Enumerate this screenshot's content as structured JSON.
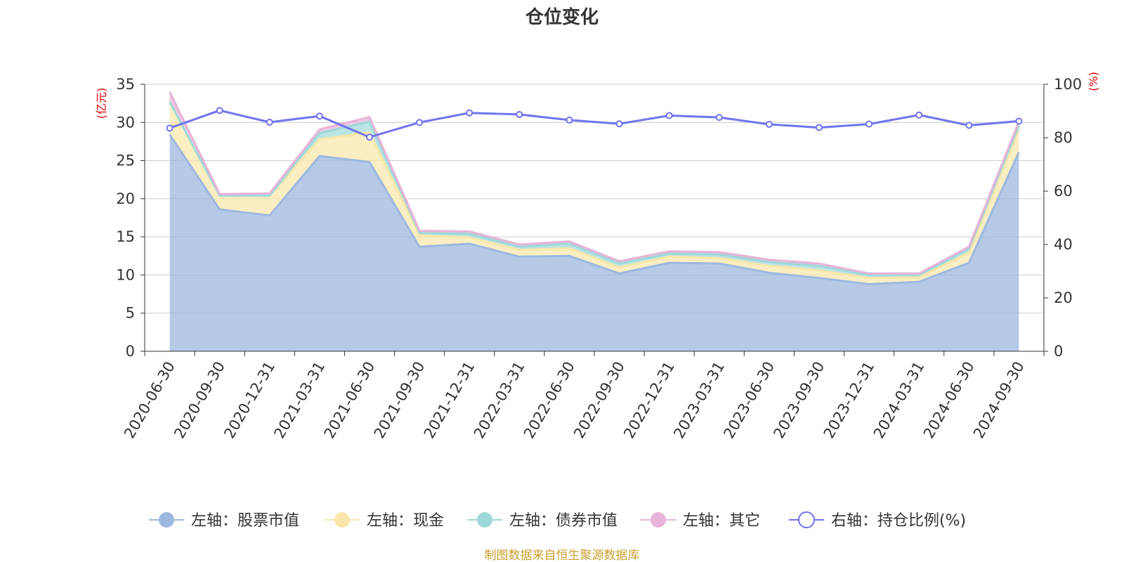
{
  "chart_data": {
    "type": "area",
    "title": "仓位变化",
    "y_left_unit": "(亿元)",
    "y_right_unit": "(%)",
    "y_left_range": [
      0,
      35
    ],
    "y_left_ticks": [
      0,
      5,
      10,
      15,
      20,
      25,
      30,
      35
    ],
    "y_right_range": [
      0,
      100
    ],
    "y_right_ticks": [
      0,
      20,
      40,
      60,
      80,
      100
    ],
    "categories": [
      "2020-06-30",
      "2020-09-30",
      "2020-12-31",
      "2021-03-31",
      "2021-06-30",
      "2021-09-30",
      "2021-12-31",
      "2022-03-31",
      "2022-06-30",
      "2022-09-30",
      "2022-12-31",
      "2023-03-31",
      "2023-06-30",
      "2023-09-30",
      "2023-12-31",
      "2024-03-31",
      "2024-06-30",
      "2024-09-30"
    ],
    "series": [
      {
        "name": "左轴：股票市值",
        "axis": "left",
        "stack": true,
        "color": "#9db8e0",
        "values": [
          28.4,
          18.6,
          17.8,
          25.6,
          24.8,
          13.7,
          14.1,
          12.4,
          12.5,
          10.2,
          11.6,
          11.5,
          10.3,
          9.6,
          8.8,
          9.1,
          11.6,
          26.1
        ]
      },
      {
        "name": "左轴：现金",
        "axis": "left",
        "stack": true,
        "color": "#f8e7a8",
        "values": [
          4.3,
          1.8,
          2.6,
          2.2,
          3.9,
          1.5,
          0.8,
          0.9,
          1.0,
          0.8,
          0.8,
          0.7,
          0.9,
          1.0,
          0.8,
          0.6,
          1.3,
          2.9
        ]
      },
      {
        "name": "左轴：债券市值",
        "axis": "left",
        "stack": true,
        "color": "#9ed8d8",
        "values": [
          0.0,
          0.0,
          0.0,
          0.8,
          1.4,
          0.3,
          0.5,
          0.4,
          0.6,
          0.5,
          0.4,
          0.5,
          0.5,
          0.6,
          0.4,
          0.3,
          0.5,
          0.6
        ]
      },
      {
        "name": "左轴：其它",
        "axis": "left",
        "stack": true,
        "color": "#e7b3d8",
        "values": [
          1.3,
          0.2,
          0.3,
          0.5,
          0.6,
          0.3,
          0.3,
          0.3,
          0.3,
          0.3,
          0.3,
          0.3,
          0.3,
          0.3,
          0.2,
          0.2,
          0.3,
          0.5
        ]
      },
      {
        "name": "右轴：持仓比例(%)",
        "axis": "right",
        "stack": false,
        "color": "#7074ee",
        "values": [
          83.6,
          90.2,
          85.8,
          88.1,
          80.2,
          85.7,
          89.3,
          88.7,
          86.6,
          85.2,
          88.3,
          87.6,
          85.0,
          83.8,
          85.1,
          88.5,
          84.6,
          86.2
        ]
      }
    ],
    "source_note": "制图数据来自恒生聚源数据库",
    "legend_position": "bottom",
    "grid": true
  }
}
